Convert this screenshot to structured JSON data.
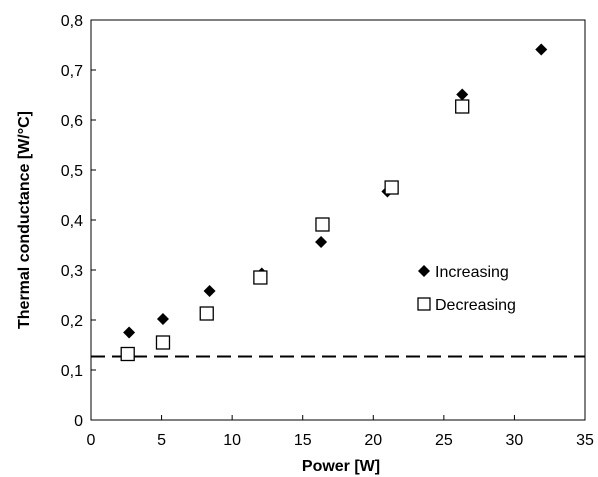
{
  "chart_data": {
    "type": "scatter",
    "title": "",
    "xlabel": "Power [W]",
    "ylabel": "Thermal conductance [W/°C]",
    "xlim": [
      0,
      35
    ],
    "ylim": [
      0,
      0.8
    ],
    "x_ticks": [
      {
        "value": 0,
        "label": "0"
      },
      {
        "value": 5,
        "label": "5"
      },
      {
        "value": 10,
        "label": "10"
      },
      {
        "value": 15,
        "label": "15"
      },
      {
        "value": 20,
        "label": "20"
      },
      {
        "value": 25,
        "label": "25"
      },
      {
        "value": 30,
        "label": "30"
      },
      {
        "value": 35,
        "label": "35"
      }
    ],
    "y_ticks": [
      {
        "value": 0,
        "label": "0"
      },
      {
        "value": 0.1,
        "label": "0,1"
      },
      {
        "value": 0.2,
        "label": "0,2"
      },
      {
        "value": 0.3,
        "label": "0,3"
      },
      {
        "value": 0.4,
        "label": "0,4"
      },
      {
        "value": 0.5,
        "label": "0,5"
      },
      {
        "value": 0.6,
        "label": "0,6"
      },
      {
        "value": 0.7,
        "label": "0,7"
      },
      {
        "value": 0.8,
        "label": "0,8"
      }
    ],
    "grid": false,
    "legend_position": "right",
    "series": [
      {
        "name": "Increasing",
        "marker": "diamond",
        "color": "#000000",
        "points": [
          {
            "x": 2.7,
            "y": 0.175
          },
          {
            "x": 5.1,
            "y": 0.202
          },
          {
            "x": 8.4,
            "y": 0.258
          },
          {
            "x": 12.1,
            "y": 0.293
          },
          {
            "x": 16.3,
            "y": 0.356
          },
          {
            "x": 21.0,
            "y": 0.457
          },
          {
            "x": 26.3,
            "y": 0.651
          },
          {
            "x": 31.9,
            "y": 0.741
          }
        ]
      },
      {
        "name": "Decreasing",
        "marker": "square-open",
        "color": "#000000",
        "points": [
          {
            "x": 2.6,
            "y": 0.132
          },
          {
            "x": 5.1,
            "y": 0.155
          },
          {
            "x": 8.2,
            "y": 0.213
          },
          {
            "x": 12.0,
            "y": 0.285
          },
          {
            "x": 16.4,
            "y": 0.391
          },
          {
            "x": 21.3,
            "y": 0.465
          },
          {
            "x": 26.3,
            "y": 0.627
          }
        ]
      }
    ],
    "reference_line": {
      "style": "dashed",
      "y": 0.127
    }
  }
}
